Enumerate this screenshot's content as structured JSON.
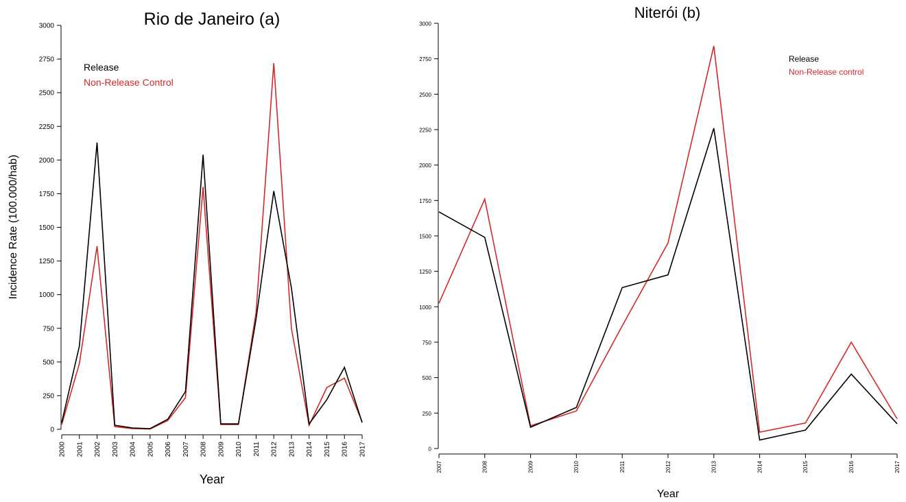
{
  "chart_data": [
    {
      "type": "line",
      "title": "Rio de Janeiro (a)",
      "xlabel": "Year",
      "ylabel": "Incidence Rate (100.000/hab)",
      "ylim": [
        0,
        3000
      ],
      "yticks": [
        0,
        250,
        500,
        750,
        1000,
        1250,
        1500,
        1750,
        2000,
        2250,
        2500,
        2750,
        3000
      ],
      "x": [
        "2000",
        "2001",
        "2002",
        "2003",
        "2004",
        "2005",
        "2006",
        "2007",
        "2008",
        "2009",
        "2010",
        "2011",
        "2012",
        "2013",
        "2014",
        "2015",
        "2016",
        "2017"
      ],
      "legend": {
        "placement": "top-left",
        "entries": [
          "Release",
          "Non-Release Control"
        ]
      },
      "series": [
        {
          "name": "Release",
          "color": "#000000",
          "values": [
            50,
            620,
            2130,
            30,
            10,
            5,
            75,
            280,
            2040,
            40,
            40,
            820,
            1770,
            1050,
            40,
            220,
            460,
            50
          ]
        },
        {
          "name": "Non-Release Control",
          "color": "#d62728",
          "values": [
            35,
            490,
            1360,
            20,
            5,
            2,
            65,
            235,
            1800,
            35,
            35,
            870,
            2720,
            750,
            30,
            310,
            380,
            55
          ]
        }
      ]
    },
    {
      "type": "line",
      "title": "Niterói (b)",
      "xlabel": "Year",
      "ylabel": "",
      "ylim": [
        0,
        3000
      ],
      "yticks": [
        0,
        250,
        500,
        750,
        1000,
        1250,
        1500,
        1750,
        2000,
        2250,
        2500,
        2750,
        3000
      ],
      "x": [
        "2007",
        "2008",
        "2009",
        "2010",
        "2011",
        "2012",
        "2013",
        "2014",
        "2015",
        "2016",
        "2017"
      ],
      "legend": {
        "placement": "top-right",
        "entries": [
          "Release",
          "Non-Release control"
        ]
      },
      "series": [
        {
          "name": "Release",
          "color": "#000000",
          "values": [
            1670,
            1490,
            150,
            290,
            1135,
            1225,
            2260,
            60,
            130,
            525,
            175
          ]
        },
        {
          "name": "Non-Release control",
          "color": "#d62728",
          "values": [
            1025,
            1760,
            160,
            265,
            865,
            1450,
            2840,
            115,
            180,
            750,
            210
          ]
        }
      ]
    }
  ]
}
